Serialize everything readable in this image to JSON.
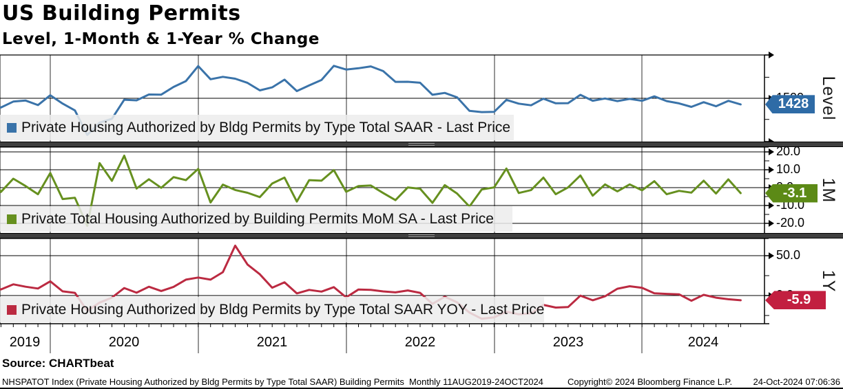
{
  "header": {
    "title": "US Building Permits",
    "subtitle": "Level, 1-Month & 1-Year % Change"
  },
  "source": {
    "label": "Source: CHARTbeat"
  },
  "footer": {
    "index_line": "NHSPATOT Index (Private Housing Authorized by Bldg Permits by Type Total SAAR) Building Permits  Monthly 11AUG2019-24OCT2024",
    "copyright": "Copyright© 2024 Bloomberg Finance L.P.",
    "timestamp": "24-Oct-2024 07:06:36"
  },
  "x_axis": {
    "years": [
      "2019",
      "2020",
      "2021",
      "2022",
      "2023",
      "2024"
    ]
  },
  "chart_data": [
    {
      "type": "line",
      "panel": "Level",
      "axis_label": "Level",
      "legend": "Private Housing Authorized by Bldg Permits by Type Total SAAR - Last Price",
      "color": "#3a73a9",
      "badge_color": "#2e6ba6",
      "last_price": "1428",
      "x_start": "2019-08",
      "x_end": "2024-09",
      "frequency": "Monthly",
      "ylim": [
        987,
        2014
      ],
      "gridlines": [
        1500
      ],
      "yticks": [
        {
          "v": 1500,
          "label": "1500"
        }
      ],
      "values": [
        1425,
        1391,
        1461,
        1474,
        1420,
        1536,
        1438,
        1356,
        1066,
        1212,
        1258,
        1483,
        1476,
        1545,
        1544,
        1635,
        1704,
        1883,
        1726,
        1755,
        1733,
        1683,
        1594,
        1630,
        1721,
        1586,
        1653,
        1717,
        1885,
        1841,
        1857,
        1879,
        1823,
        1695,
        1696,
        1685,
        1542,
        1564,
        1512,
        1351,
        1337,
        1339,
        1482,
        1437,
        1417,
        1496,
        1441,
        1443,
        1541,
        1471,
        1498,
        1467,
        1493,
        1470,
        1523,
        1467,
        1440,
        1399,
        1454,
        1406,
        1470,
        1428
      ]
    },
    {
      "type": "line",
      "panel": "1M",
      "axis_label": "1M",
      "legend": "Private Total Housing Authorized by Building Permits MoM SA - Last Price",
      "color": "#66901f",
      "badge_color": "#5c8a16",
      "last_price": "-3.1",
      "x_start": "2019-08",
      "x_end": "2024-09",
      "frequency": "Monthly",
      "ylim": [
        -25.4,
        22.7
      ],
      "gridlines": [
        20,
        10,
        0,
        -10,
        -20
      ],
      "yticks": [
        {
          "v": 20,
          "label": "20.0"
        },
        {
          "v": 10,
          "label": "10.0"
        },
        {
          "v": 0,
          "label": "0.0"
        },
        {
          "v": -10,
          "label": "-10.0"
        },
        {
          "v": -20,
          "label": "-20.0"
        }
      ],
      "values": [
        8.2,
        -2.4,
        5.0,
        0.9,
        -3.7,
        8.2,
        -6.4,
        -5.7,
        -21.4,
        13.7,
        3.8,
        17.9,
        -0.5,
        4.7,
        -0.1,
        5.9,
        4.2,
        10.5,
        -8.3,
        1.7,
        -1.3,
        -2.9,
        -5.3,
        2.3,
        5.6,
        -7.8,
        4.2,
        3.9,
        9.8,
        -2.3,
        0.9,
        1.2,
        -3.0,
        -7.0,
        0.1,
        -0.6,
        -8.5,
        1.4,
        -3.3,
        -10.6,
        -1.0,
        0.1,
        10.7,
        -3.0,
        -1.4,
        5.6,
        -3.7,
        0.1,
        6.8,
        -4.5,
        1.8,
        -2.1,
        1.8,
        -1.5,
        3.6,
        -3.7,
        -1.8,
        -2.8,
        3.9,
        -3.3,
        4.6,
        -3.1
      ]
    },
    {
      "type": "line",
      "panel": "1Y",
      "axis_label": "1Y",
      "legend": "Private Housing Authorized by Bldg Permits by Type Total SAAR YOY - Last Price",
      "color": "#bb2a41",
      "badge_color": "#c21f40",
      "last_price": "-5.9",
      "x_start": "2019-08",
      "x_end": "2024-09",
      "frequency": "Monthly",
      "ylim": [
        -35.3,
        71.6
      ],
      "gridlines": [
        50,
        0
      ],
      "yticks": [
        {
          "v": 50,
          "label": "50.0"
        },
        {
          "v": 0,
          "label": "0.0"
        }
      ],
      "values": [
        14.0,
        7.7,
        14.1,
        11.1,
        8.8,
        17.9,
        5.3,
        3.4,
        -19.2,
        -8.8,
        -2.5,
        9.4,
        3.6,
        11.1,
        5.7,
        10.9,
        20.0,
        22.6,
        20.0,
        29.4,
        62.6,
        38.9,
        26.7,
        9.9,
        16.6,
        2.7,
        7.1,
        5.0,
        10.6,
        -2.2,
        7.6,
        7.1,
        5.2,
        4.0,
        6.4,
        3.4,
        -10.4,
        -1.4,
        -8.5,
        -21.3,
        -29.1,
        -27.3,
        -20.2,
        -23.5,
        -22.3,
        -11.7,
        -15.0,
        -14.4,
        -0.1,
        -5.9,
        -0.9,
        8.6,
        11.7,
        9.8,
        2.8,
        2.1,
        1.6,
        -6.5,
        0.9,
        -2.6,
        -4.6,
        -5.9
      ]
    }
  ]
}
